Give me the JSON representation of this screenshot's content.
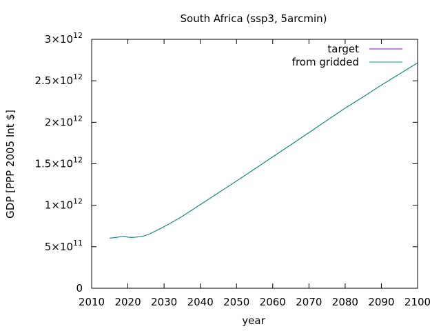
{
  "chart_data": {
    "type": "line",
    "title": "South Africa (ssp3, 5arcmin)",
    "xlabel": "year",
    "ylabel": "GDP [PPP 2005 Int $]",
    "xlim": [
      2010,
      2100
    ],
    "ylim": [
      0,
      3000000000000.0
    ],
    "x_ticks": [
      {
        "value": 2010,
        "label": "2010"
      },
      {
        "value": 2020,
        "label": "2020"
      },
      {
        "value": 2030,
        "label": "2030"
      },
      {
        "value": 2040,
        "label": "2040"
      },
      {
        "value": 2050,
        "label": "2050"
      },
      {
        "value": 2060,
        "label": "2060"
      },
      {
        "value": 2070,
        "label": "2070"
      },
      {
        "value": 2080,
        "label": "2080"
      },
      {
        "value": 2090,
        "label": "2090"
      },
      {
        "value": 2100,
        "label": "2100"
      }
    ],
    "y_ticks": [
      {
        "value": 0,
        "mant": "0",
        "exp": ""
      },
      {
        "value": 500000000000.0,
        "mant": "5×10",
        "exp": "11"
      },
      {
        "value": 1000000000000.0,
        "mant": "1×10",
        "exp": "12"
      },
      {
        "value": 1500000000000.0,
        "mant": "1.5×10",
        "exp": "12"
      },
      {
        "value": 2000000000000.0,
        "mant": "2×10",
        "exp": "12"
      },
      {
        "value": 2500000000000.0,
        "mant": "2.5×10",
        "exp": "12"
      },
      {
        "value": 3000000000000.0,
        "mant": "3×10",
        "exp": "12"
      }
    ],
    "grid": false,
    "legend_position": "top-right",
    "x": [
      2015,
      2016,
      2017,
      2018,
      2019,
      2020,
      2021,
      2022,
      2023,
      2024,
      2025,
      2026,
      2027,
      2028,
      2029,
      2030,
      2032,
      2035,
      2040,
      2045,
      2050,
      2055,
      2060,
      2065,
      2070,
      2075,
      2080,
      2085,
      2090,
      2095,
      2100
    ],
    "series": [
      {
        "name": "target",
        "color": "#9400d3",
        "values": [
          603000000000.0,
          608000000000.0,
          614000000000.0,
          622000000000.0,
          626000000000.0,
          616000000000.0,
          612000000000.0,
          615000000000.0,
          620000000000.0,
          627000000000.0,
          638000000000.0,
          655000000000.0,
          676000000000.0,
          698000000000.0,
          720000000000.0,
          742000000000.0,
          790000000000.0,
          866000000000.0,
          1008000000000.0,
          1149000000000.0,
          1292000000000.0,
          1437000000000.0,
          1584000000000.0,
          1729000000000.0,
          1876000000000.0,
          2024000000000.0,
          2171000000000.0,
          2307000000000.0,
          2448000000000.0,
          2582000000000.0,
          2716000000000.0
        ]
      },
      {
        "name": "from gridded",
        "color": "#009e73",
        "values": [
          603000000000.0,
          608000000000.0,
          614000000000.0,
          622000000000.0,
          626000000000.0,
          616000000000.0,
          612000000000.0,
          615000000000.0,
          620000000000.0,
          627000000000.0,
          638000000000.0,
          655000000000.0,
          676000000000.0,
          698000000000.0,
          720000000000.0,
          742000000000.0,
          790000000000.0,
          866000000000.0,
          1008000000000.0,
          1149000000000.0,
          1292000000000.0,
          1437000000000.0,
          1584000000000.0,
          1729000000000.0,
          1876000000000.0,
          2024000000000.0,
          2171000000000.0,
          2307000000000.0,
          2448000000000.0,
          2582000000000.0,
          2716000000000.0
        ]
      }
    ]
  }
}
